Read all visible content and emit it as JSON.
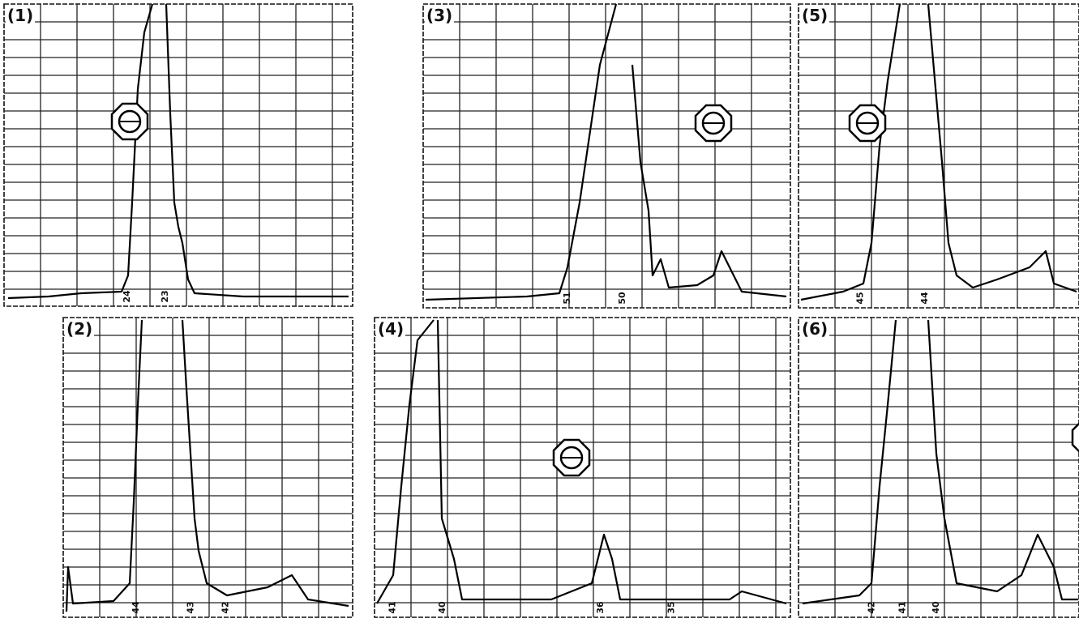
{
  "panels": [
    {
      "label": "(1)",
      "ticks": [
        "24",
        "23"
      ]
    },
    {
      "label": "(2)",
      "ticks": [
        "44",
        "43",
        "42"
      ]
    },
    {
      "label": "(3)",
      "ticks": [
        "51",
        "50"
      ]
    },
    {
      "label": "(4)",
      "ticks": [
        "41",
        "40",
        "36",
        "35"
      ]
    },
    {
      "label": "(5)",
      "ticks": [
        "45",
        "44"
      ]
    },
    {
      "label": "(6)",
      "ticks": [
        "42",
        "41",
        "40"
      ]
    }
  ]
}
